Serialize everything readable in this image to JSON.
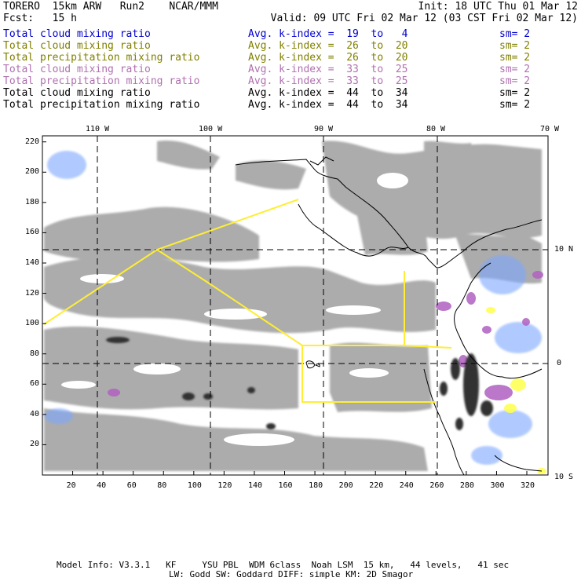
{
  "header": {
    "left1": "TORERO  15km ARW   Run2    NCAR/MMM",
    "right1": "Init: 18 UTC Thu 01 Mar 12",
    "left2": "Fcst:   15 h",
    "right2": "Valid: 09 UTC Fri 02 Mar 12 (03 CST Fri 02 Mar 12)"
  },
  "legend": [
    {
      "field": "Total cloud mixing ratio",
      "index": "Avg. k-index =  19  to   4",
      "sm": "sm= 2",
      "color": "#0000cc"
    },
    {
      "field": "Total cloud mixing ratio",
      "index": "Avg. k-index =  26  to  20",
      "sm": "sm= 2",
      "color": "#808000"
    },
    {
      "field": "Total precipitation mixing ratio",
      "index": "Avg. k-index =  26  to  20",
      "sm": "sm= 2",
      "color": "#808000"
    },
    {
      "field": "Total cloud mixing ratio",
      "index": "Avg. k-index =  33  to  25",
      "sm": "sm= 2",
      "color": "#b070b0"
    },
    {
      "field": "Total precipitation mixing ratio",
      "index": "Avg. k-index =  33  to  25",
      "sm": "sm= 2",
      "color": "#b070b0"
    },
    {
      "field": "Total cloud mixing ratio",
      "index": "Avg. k-index =  44  to  34",
      "sm": "sm= 2",
      "color": "#000000"
    },
    {
      "field": "Total precipitation mixing ratio",
      "index": "Avg. k-index =  44  to  34",
      "sm": "sm= 2",
      "color": "#000000"
    }
  ],
  "map": {
    "lon_labels": [
      "110 W",
      "100 W",
      "90 W",
      "80 W",
      "70 W"
    ],
    "lat_labels": [
      "10 N",
      "0",
      "10 S"
    ],
    "x_ticks": [
      "20",
      "40",
      "60",
      "80",
      "100",
      "120",
      "140",
      "160",
      "180",
      "200",
      "220",
      "240",
      "260",
      "280",
      "300",
      "320"
    ],
    "y_ticks": [
      "20",
      "40",
      "60",
      "80",
      "100",
      "120",
      "140",
      "160",
      "180",
      "200",
      "220"
    ],
    "colors": {
      "frame": "#000000",
      "grid": "#000000",
      "track": "#ffee33",
      "gray": "#a8a8a8",
      "dark": "#333333",
      "blue": "#7da7ff",
      "purple": "#b060c0",
      "yellow": "#ffff55"
    }
  },
  "footer": {
    "line1": "Model Info: V3.3.1   KF     YSU PBL  WDM 6class  Noah LSM  15 km,   44 levels,   41 sec",
    "line2": "LW: Godd SW: Goddard DIFF: simple KM: 2D Smagor"
  }
}
